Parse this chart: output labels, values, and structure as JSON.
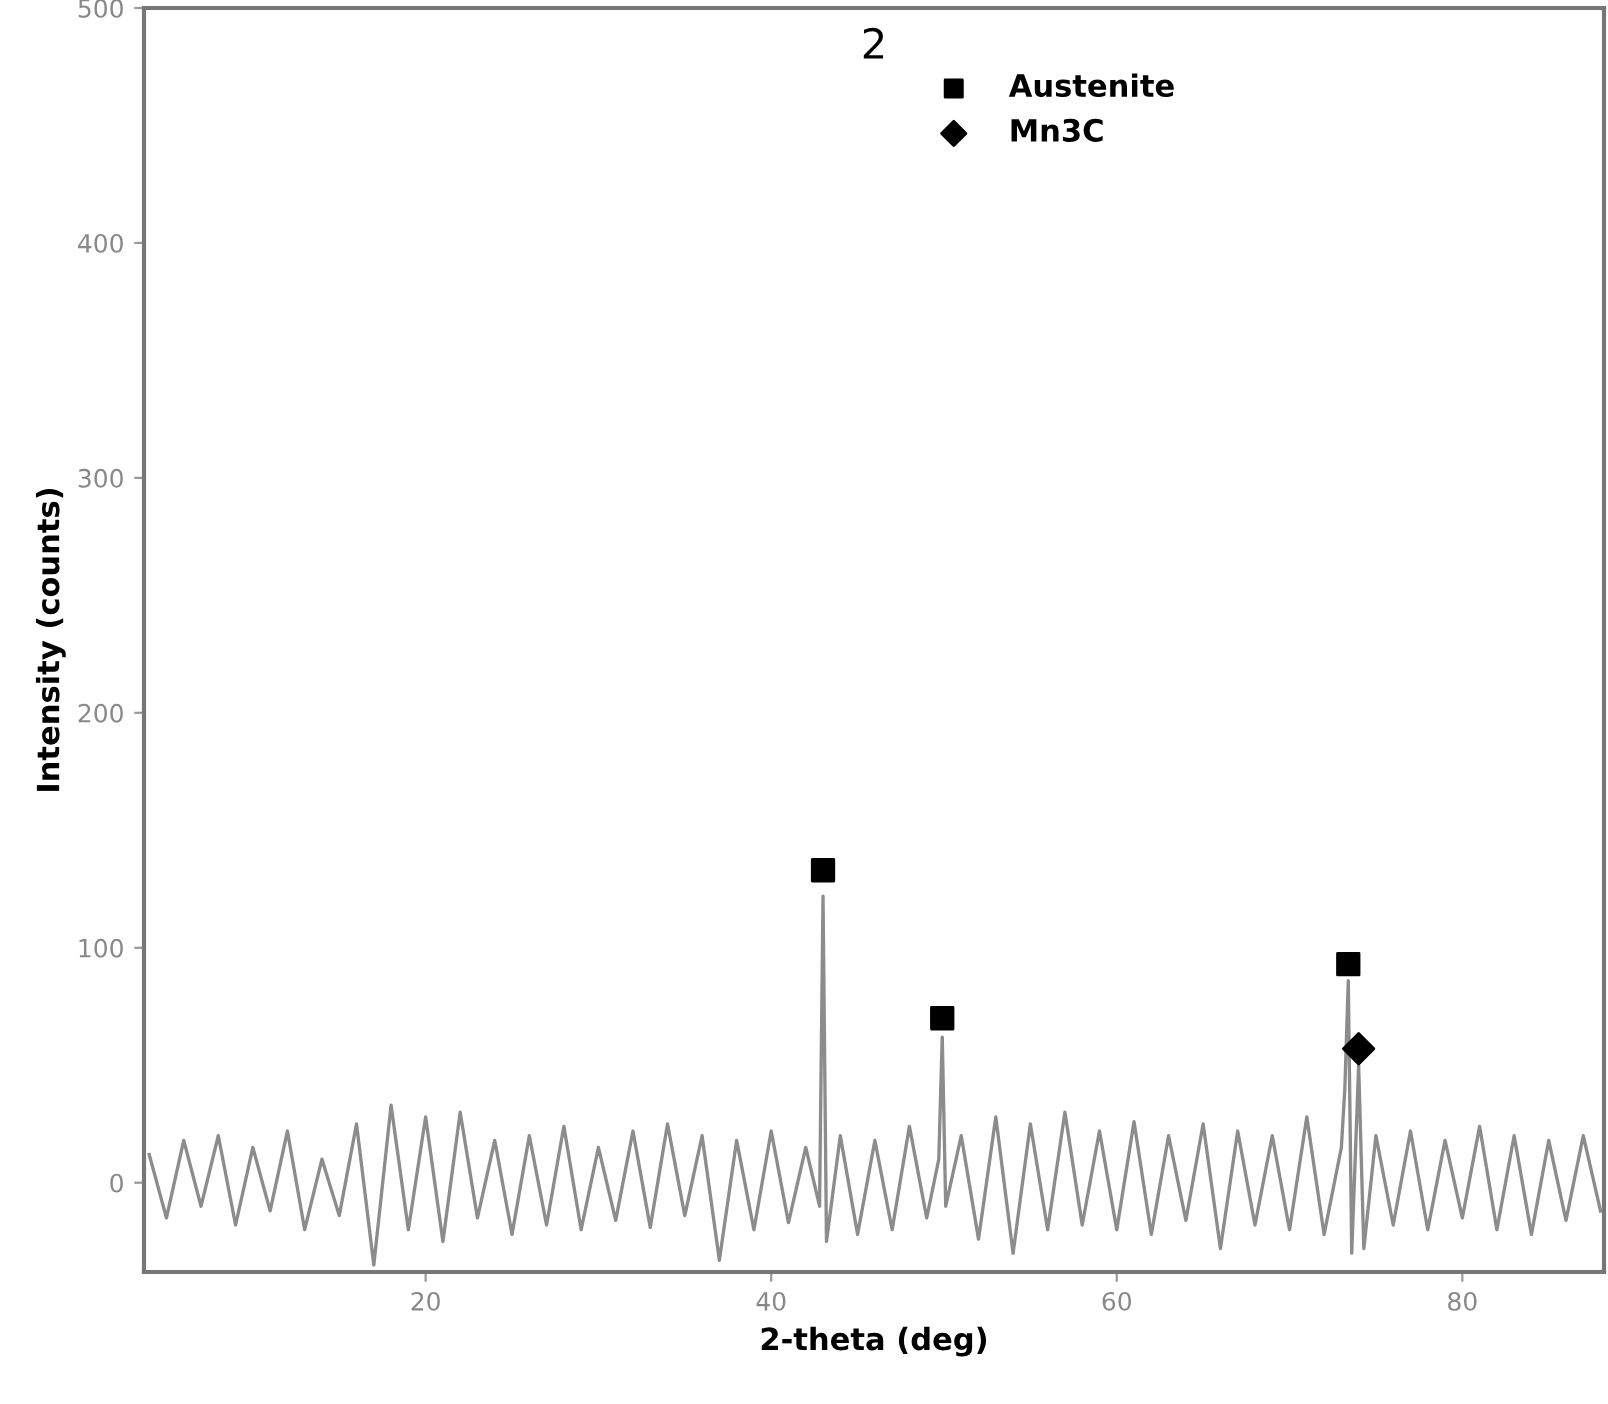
{
  "chart_data": {
    "type": "line",
    "xlabel": "2-theta (deg)",
    "ylabel": "Intensity (counts)",
    "annotations": [
      "2"
    ],
    "xlim": [
      3.7,
      88.2
    ],
    "ylim": [
      -38,
      500
    ],
    "xticks": [
      20,
      40,
      60,
      80
    ],
    "yticks": [
      0,
      100,
      200,
      300,
      400,
      500
    ],
    "grid": false,
    "legend": "top",
    "series": [
      {
        "color": "#8c8c8c",
        "marker": "none",
        "x": [
          4,
          5,
          6,
          7,
          8,
          9,
          10,
          11,
          12,
          13,
          14,
          15,
          16,
          17,
          18,
          19,
          20,
          21,
          22,
          23,
          24,
          25,
          26,
          27,
          28,
          29,
          30,
          31,
          32,
          33,
          34,
          35,
          36,
          37,
          38,
          39,
          40,
          41,
          42,
          42.8,
          43.0,
          43.2,
          44,
          45,
          46,
          47,
          48,
          49,
          49.7,
          49.9,
          50.1,
          51,
          52,
          53,
          54,
          55,
          56,
          57,
          58,
          59,
          60,
          61,
          62,
          63,
          64,
          65,
          66,
          67,
          68,
          69,
          70,
          71,
          72,
          73,
          73.2,
          73.4,
          73.6,
          74.0,
          74.3,
          75,
          76,
          77,
          78,
          79,
          80,
          81,
          82,
          83,
          84,
          85,
          86,
          87,
          88
        ],
        "values": [
          12,
          -15,
          18,
          -10,
          20,
          -18,
          15,
          -12,
          22,
          -20,
          10,
          -14,
          25,
          -35,
          33,
          -20,
          28,
          -25,
          30,
          -15,
          18,
          -22,
          20,
          -18,
          24,
          -20,
          15,
          -16,
          22,
          -19,
          25,
          -14,
          20,
          -33,
          18,
          -20,
          22,
          -17,
          15,
          -10,
          122,
          -25,
          20,
          -22,
          18,
          -20,
          24,
          -15,
          10,
          62,
          -10,
          20,
          -24,
          28,
          -30,
          25,
          -20,
          30,
          -18,
          22,
          -20,
          26,
          -22,
          20,
          -16,
          25,
          -28,
          22,
          -18,
          20,
          -20,
          28,
          -22,
          15,
          40,
          86,
          -30,
          50,
          -28,
          20,
          -18,
          22,
          -20,
          18,
          -15,
          24,
          -20,
          20,
          -22,
          18,
          -16,
          20,
          -12
        ]
      },
      {
        "type": "scatter",
        "name": "Austenite",
        "color": "#000000",
        "marker": "square",
        "x": [
          43.0,
          49.9,
          73.4
        ],
        "values": [
          133,
          70,
          93
        ]
      },
      {
        "type": "scatter",
        "name": "Mn3C",
        "color": "#000000",
        "marker": "diamond",
        "x": [
          74.0
        ],
        "values": [
          57
        ]
      }
    ]
  }
}
